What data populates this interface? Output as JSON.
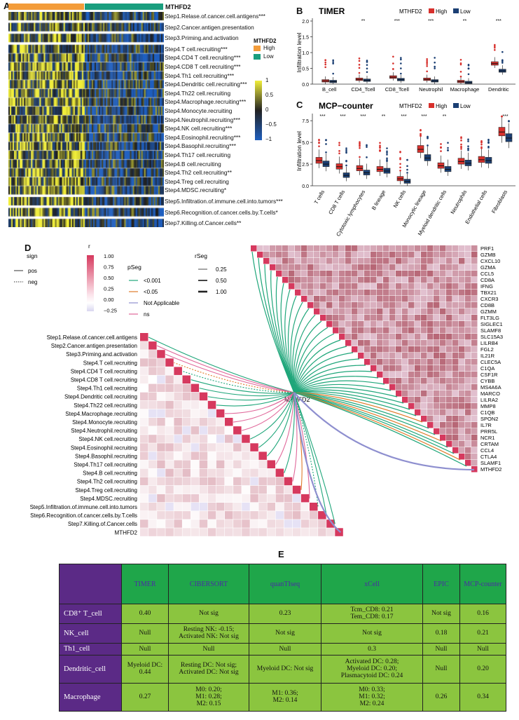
{
  "panelA": {
    "label": "A",
    "gene": "MTHFD2",
    "legend_title": "MTHFD2",
    "legend_groups": [
      {
        "name": "High",
        "color": "#f39c3a"
      },
      {
        "name": "Low",
        "color": "#1a9e7e"
      }
    ],
    "scale_ticks": [
      "1",
      "0.5",
      "0",
      "−0.5",
      "−1"
    ],
    "rows": [
      "Step1.Relase.of.cancer.cell.antigens***",
      "Step2.Cancer.antigen.presentation",
      "Step3.Priming.and.activation",
      "Step4.T cell.recruiting***",
      "Step4.CD4 T cell.recruiting***",
      "Step4.CD8 T cell.recruiting***",
      "Step4.Th1 cell.recruiting***",
      "Step4.Dendritic cell.recruiting***",
      "Step4.Th22 cell.recruiting",
      "Step4.Macrophage.recruiting***",
      "Step4.Monocyte.recruiting",
      "Step4.Neutrophil.recruiting***",
      "Step4.NK cell.recruiting***",
      "Step4.Eosinophil.recruiting***",
      "Step4.Basophil.recruiting***",
      "Step4.Th17 cell.recruiting",
      "Step4.B cell.recruiting",
      "Step4.Th2 cell.recruiting**",
      "Step4.Treg cell.recruiting",
      "Step4.MDSC.recruiting*",
      "Step5.Infiltration.of.immune.cell.into.tumors***",
      "Step6.Recognition.of.cancer.cells.by.T.cells*",
      "Step7.Killing.of.Cancer.cells**"
    ]
  },
  "panelB": {
    "label": "B",
    "chart_data": {
      "type": "box",
      "title": "TIMER",
      "legend_title": "MTHFD2",
      "ylabel": "Infiltration level",
      "ylim": [
        0,
        2.0
      ],
      "yticks": [
        "0.0",
        "0.5",
        "1.0",
        "1.5",
        "2.0"
      ],
      "categories": [
        "B_cell",
        "CD4_Tcell",
        "CD8_Tcell",
        "Neutrophil",
        "Macrophage",
        "Dendritic"
      ],
      "significance": [
        "",
        "**",
        "***",
        "***",
        "**",
        "***"
      ],
      "series": [
        {
          "name": "High",
          "color": "#d7302c",
          "medians": [
            0.1,
            0.15,
            0.22,
            0.15,
            0.08,
            0.65
          ]
        },
        {
          "name": "Low",
          "color": "#1b3f73",
          "medians": [
            0.08,
            0.12,
            0.14,
            0.1,
            0.05,
            0.42
          ]
        }
      ]
    }
  },
  "panelC": {
    "label": "C",
    "chart_data": {
      "type": "box",
      "title": "MCP−counter",
      "legend_title": "MTHFD2",
      "ylabel": "Infiltration level",
      "ylim": [
        0,
        8
      ],
      "yticks": [
        "0.0",
        "2.5",
        "5.0",
        "7.5"
      ],
      "categories": [
        "T cells",
        "CD8 T cells",
        "Cytotoxic lymphocytes",
        "B lineage",
        "NK cells",
        "Monocytic lineage",
        "Myeloid dendritic cells",
        "Neutrophils",
        "Endothelial cells",
        "Fibroblasts"
      ],
      "significance": [
        "***",
        "***",
        "***",
        "**",
        "***",
        "***",
        "**",
        "",
        "",
        "***"
      ],
      "series": [
        {
          "name": "High",
          "color": "#d7302c",
          "medians": [
            2.9,
            2.2,
            2.0,
            1.9,
            0.8,
            4.2,
            2.3,
            2.8,
            3.0,
            6.2
          ]
        },
        {
          "name": "Low",
          "color": "#1b3f73",
          "medians": [
            2.5,
            1.2,
            1.5,
            1.7,
            0.5,
            3.2,
            1.9,
            2.6,
            2.9,
            5.5
          ]
        }
      ]
    }
  },
  "panelD": {
    "label": "D",
    "center_label": "MTHFD2",
    "legend": {
      "sign_title": "sign",
      "sign_items": [
        "pos",
        "neg"
      ],
      "r_title": "r",
      "r_ticks": [
        "1.00",
        "0.75",
        "0.50",
        "0.25",
        "0.00",
        "−0.25"
      ],
      "pseg_title": "pSeg",
      "pseg_items": [
        {
          "label": "<0.001",
          "color": "#1fa67a"
        },
        {
          "label": "<0.05",
          "color": "#e07b2a"
        },
        {
          "label": "Not Applicable",
          "color": "#8e8fcf"
        },
        {
          "label": "ns",
          "color": "#e0679a"
        }
      ],
      "rseg_title": "rSeg",
      "rseg_items": [
        "0.25",
        "0.50",
        "1.00"
      ]
    },
    "right_genes": [
      "PRF1",
      "GZMB",
      "CXCL10",
      "GZMA",
      "CCL5",
      "CD8A",
      "IFNG",
      "TBX21",
      "CXCR3",
      "CD8B",
      "GZMM",
      "FLT3LG",
      "SIGLEC1",
      "SLAMF8",
      "SLC15A3",
      "LILRB4",
      "FGL2",
      "IL21R",
      "CLEC5A",
      "C1QA",
      "CSF1R",
      "CYBB",
      "MS4A6A",
      "MARCO",
      "LILRA2",
      "MMP8",
      "C1QB",
      "SPON2",
      "IL7R",
      "PRR5L",
      "NCR1",
      "CRTAM",
      "CCL4",
      "CTLA4",
      "SLAMF1",
      "MTHFD2"
    ],
    "left_steps": [
      "Step1.Relase.of.cancer.cell.antigens",
      "Step2.Cancer.antigen.presentation",
      "Step3.Priming.and.activation",
      "Step4.T cell.recruiting",
      "Step4.CD4 T cell.recruiting",
      "Step4.CD8 T cell.recruiting",
      "Step4.Th1 cell.recruiting",
      "Step4.Dendritic cell.recruiting",
      "Step4.Th22 cell.recruiting",
      "Step4.Macrophage.recruiting",
      "Step4.Monocyte.recruiting",
      "Step4.Neutrophil.recruiting",
      "Step4.NK cell.recruiting",
      "Step4.Eosinophil.recruiting",
      "Step4.Basophil.recruiting",
      "Step4.Th17 cell.recruiting",
      "Step4.B cell.recruiting",
      "Step4.Th2 cell.recruiting",
      "Step4.Treg cell.recruiting",
      "Step4.MDSC.recruiting",
      "Step5.Infiltration.of.immune.cell.into.tumors",
      "Step6.Recognition.of.cancer.cells.by.T.cells",
      "Step7.Killing.of.Cancer.cells",
      "MTHFD2"
    ]
  },
  "panelE": {
    "label": "E",
    "headers": [
      "TIMER",
      "CIBERSORT",
      "quanTIseq",
      "xCell",
      "EPIC",
      "MCP-counter"
    ],
    "rows": [
      {
        "name": "CD8⁺ T_cell",
        "cells": [
          "0.40",
          "Not sig",
          "0.23",
          "Tcm_CD8: 0.21\nTem_CD8: 0.17",
          "Not sig",
          "0.16"
        ]
      },
      {
        "name": "NK_cell",
        "cells": [
          "Null",
          "Resting NK: -0.15;\nActivated NK: Not sig",
          "Not sig",
          "Not sig",
          "0.18",
          "0.21"
        ]
      },
      {
        "name": "Th1_cell",
        "cells": [
          "Null",
          "Null",
          "Null",
          "0.3",
          "Null",
          "Null"
        ]
      },
      {
        "name": "Dendritic_cell",
        "cells": [
          "Myeloid DC: 0.44",
          "Resting DC: Not sig;\nActivated DC: Not sig",
          "Myeloid DC: Not sig",
          "Activated DC: 0.28;\nMyeloid DC: 0.20;\nPlasmacytoid DC: 0.24",
          "Null",
          "0.20"
        ]
      },
      {
        "name": "Macrophage",
        "cells": [
          "0.27",
          "M0: 0.20;\nM1: 0.28;\nM2: 0.15",
          "M1: 0.36;\nM2: 0.14",
          "M0: 0.33;\nM1: 0.32;\nM2: 0.24",
          "0.26",
          "0.34"
        ]
      }
    ]
  }
}
